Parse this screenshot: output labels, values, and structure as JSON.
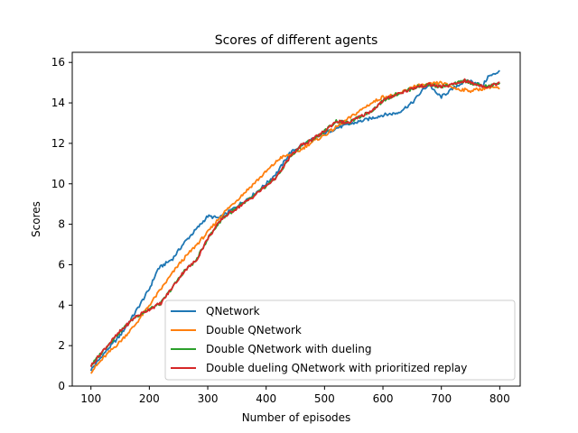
{
  "chart_data": {
    "type": "line",
    "title": "Scores of different agents",
    "xlabel": "Number of episodes",
    "ylabel": "Scores",
    "xlim": [
      68,
      835
    ],
    "ylim": [
      0,
      16.5
    ],
    "xticks": [
      100,
      200,
      300,
      400,
      500,
      600,
      700,
      800
    ],
    "yticks": [
      0,
      2,
      4,
      6,
      8,
      10,
      12,
      14,
      16
    ],
    "grid": false,
    "legend_position": "lower-right",
    "series": [
      {
        "name": "QNetwork",
        "color": "#1f77b4",
        "points": [
          [
            100,
            0.8
          ],
          [
            125,
            1.7
          ],
          [
            150,
            2.5
          ],
          [
            175,
            3.6
          ],
          [
            200,
            4.8
          ],
          [
            215,
            5.8
          ],
          [
            240,
            6.3
          ],
          [
            260,
            7.1
          ],
          [
            285,
            7.9
          ],
          [
            300,
            8.4
          ],
          [
            320,
            8.3
          ],
          [
            350,
            8.9
          ],
          [
            380,
            9.5
          ],
          [
            400,
            10.0
          ],
          [
            420,
            10.6
          ],
          [
            440,
            11.5
          ],
          [
            460,
            11.9
          ],
          [
            480,
            12.2
          ],
          [
            500,
            12.5
          ],
          [
            525,
            12.8
          ],
          [
            550,
            13.0
          ],
          [
            575,
            13.2
          ],
          [
            600,
            13.4
          ],
          [
            625,
            13.5
          ],
          [
            650,
            14.0
          ],
          [
            670,
            14.7
          ],
          [
            680,
            14.9
          ],
          [
            690,
            14.5
          ],
          [
            700,
            14.3
          ],
          [
            715,
            14.6
          ],
          [
            730,
            14.9
          ],
          [
            745,
            15.1
          ],
          [
            760,
            15.0
          ],
          [
            770,
            14.8
          ],
          [
            780,
            15.3
          ],
          [
            790,
            15.4
          ],
          [
            800,
            15.6
          ]
        ]
      },
      {
        "name": "Double QNetwork",
        "color": "#ff7f0e",
        "points": [
          [
            100,
            0.7
          ],
          [
            125,
            1.5
          ],
          [
            150,
            2.2
          ],
          [
            175,
            3.0
          ],
          [
            200,
            4.0
          ],
          [
            225,
            5.0
          ],
          [
            250,
            6.0
          ],
          [
            275,
            6.8
          ],
          [
            300,
            7.6
          ],
          [
            325,
            8.5
          ],
          [
            350,
            9.2
          ],
          [
            375,
            9.9
          ],
          [
            400,
            10.6
          ],
          [
            425,
            11.3
          ],
          [
            450,
            11.5
          ],
          [
            475,
            12.0
          ],
          [
            500,
            12.4
          ],
          [
            525,
            12.9
          ],
          [
            550,
            13.4
          ],
          [
            575,
            13.9
          ],
          [
            600,
            14.3
          ],
          [
            625,
            14.4
          ],
          [
            650,
            14.8
          ],
          [
            675,
            14.9
          ],
          [
            700,
            15.0
          ],
          [
            725,
            14.7
          ],
          [
            750,
            14.6
          ],
          [
            770,
            14.7
          ],
          [
            785,
            14.8
          ],
          [
            800,
            14.7
          ]
        ]
      },
      {
        "name": "Double QNetwork with dueling",
        "color": "#2ca02c",
        "points": [
          [
            100,
            1.0
          ],
          [
            125,
            1.9
          ],
          [
            150,
            2.7
          ],
          [
            175,
            3.4
          ],
          [
            200,
            3.8
          ],
          [
            220,
            4.1
          ],
          [
            240,
            4.9
          ],
          [
            260,
            5.7
          ],
          [
            280,
            6.2
          ],
          [
            300,
            7.3
          ],
          [
            325,
            8.3
          ],
          [
            350,
            8.8
          ],
          [
            375,
            9.3
          ],
          [
            400,
            9.9
          ],
          [
            420,
            10.4
          ],
          [
            440,
            11.3
          ],
          [
            460,
            11.9
          ],
          [
            480,
            12.2
          ],
          [
            500,
            12.6
          ],
          [
            520,
            13.1
          ],
          [
            540,
            13.0
          ],
          [
            560,
            13.3
          ],
          [
            580,
            13.6
          ],
          [
            600,
            14.1
          ],
          [
            620,
            14.4
          ],
          [
            640,
            14.6
          ],
          [
            660,
            14.8
          ],
          [
            680,
            14.9
          ],
          [
            700,
            14.8
          ],
          [
            720,
            14.9
          ],
          [
            740,
            15.1
          ],
          [
            760,
            14.9
          ],
          [
            780,
            14.8
          ],
          [
            800,
            15.0
          ]
        ]
      },
      {
        "name": "Double dueling QNetwork with prioritized replay",
        "color": "#d62728",
        "points": [
          [
            100,
            1.0
          ],
          [
            125,
            1.9
          ],
          [
            150,
            2.7
          ],
          [
            175,
            3.4
          ],
          [
            200,
            3.8
          ],
          [
            220,
            4.1
          ],
          [
            240,
            4.9
          ],
          [
            260,
            5.7
          ],
          [
            280,
            6.2
          ],
          [
            300,
            7.3
          ],
          [
            325,
            8.3
          ],
          [
            350,
            8.8
          ],
          [
            375,
            9.3
          ],
          [
            400,
            9.9
          ],
          [
            420,
            10.4
          ],
          [
            440,
            11.3
          ],
          [
            460,
            11.9
          ],
          [
            480,
            12.2
          ],
          [
            500,
            12.6
          ],
          [
            520,
            13.1
          ],
          [
            540,
            13.0
          ],
          [
            560,
            13.3
          ],
          [
            580,
            13.6
          ],
          [
            600,
            14.1
          ],
          [
            620,
            14.4
          ],
          [
            640,
            14.6
          ],
          [
            660,
            14.8
          ],
          [
            680,
            14.9
          ],
          [
            700,
            14.8
          ],
          [
            720,
            14.9
          ],
          [
            740,
            15.1
          ],
          [
            760,
            14.9
          ],
          [
            780,
            14.8
          ],
          [
            800,
            15.0
          ]
        ]
      }
    ]
  }
}
